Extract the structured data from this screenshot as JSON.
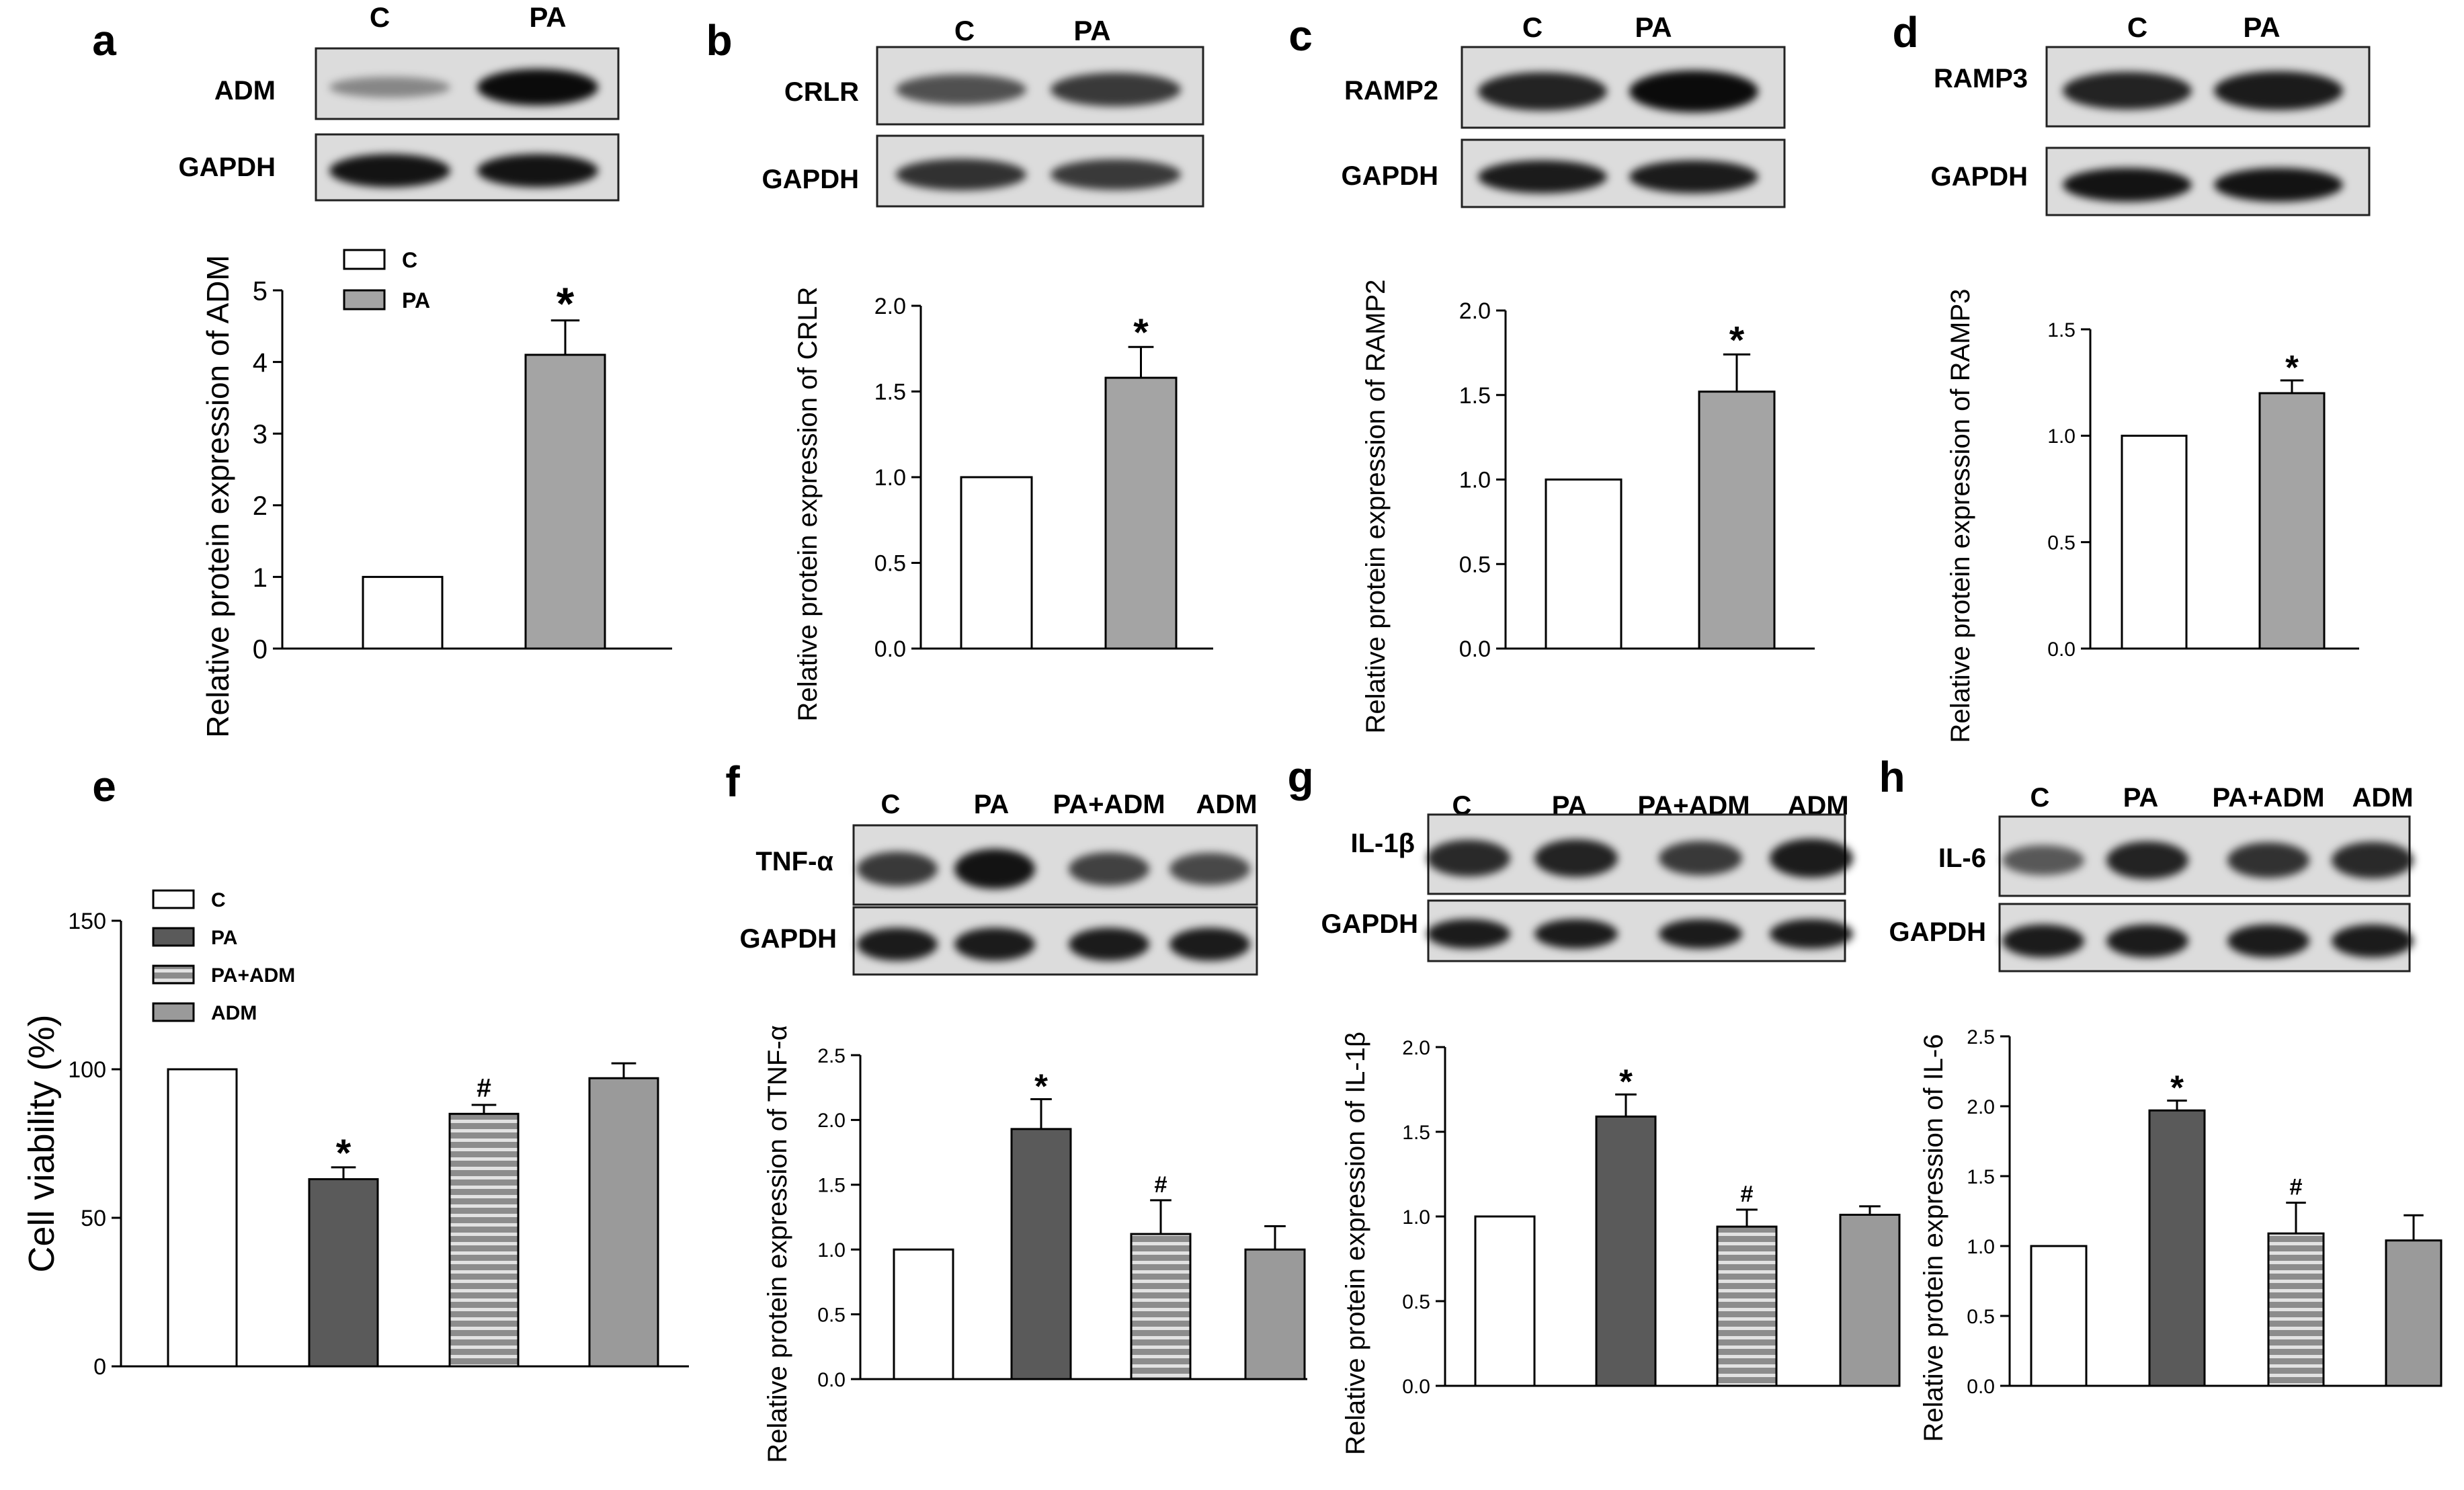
{
  "panels": [
    {
      "letter": "a",
      "protein": "ADM",
      "ylabel": "Relative protein expression of ADM"
    },
    {
      "letter": "b",
      "protein": "CRLR",
      "ylabel": "Relative protein expression of CRLR"
    },
    {
      "letter": "c",
      "protein": "RAMP2",
      "ylabel": "Relative protein expression of RAMP2"
    },
    {
      "letter": "d",
      "protein": "RAMP3",
      "ylabel": "Relative protein expression of RAMP3"
    },
    {
      "letter": "e",
      "protein": "",
      "ylabel": "Cell viability (%)"
    },
    {
      "letter": "f",
      "protein": "TNF-α",
      "ylabel": "Relative protein expression of  TNF-α"
    },
    {
      "letter": "g",
      "protein": "IL-1β",
      "ylabel": "Relative protein expression of IL-1β"
    },
    {
      "letter": "h",
      "protein": "IL-6",
      "ylabel": "Relative protein expression of IL-6"
    }
  ],
  "loading_control": "GAPDH",
  "groups_two": [
    "C",
    "PA"
  ],
  "groups_four": [
    "C",
    "PA",
    "PA+ADM",
    "ADM"
  ],
  "legend_two": [
    "C",
    "PA"
  ],
  "legend_four": [
    "C",
    "PA",
    "PA+ADM",
    "ADM"
  ],
  "colors": {
    "C": "#ffffff",
    "PA_two": "#a4a4a4",
    "PA_four": "#5a5a5a",
    "PA_ADM": "#8c8c8c",
    "ADM": "#9a9a9a"
  },
  "chart_data": [
    {
      "panel": "a",
      "type": "bar",
      "categories": [
        "C",
        "PA"
      ],
      "values": [
        1.0,
        4.1
      ],
      "errors": [
        0,
        0.48
      ],
      "marks": [
        "",
        "*"
      ],
      "ylim": [
        0,
        5
      ],
      "yticks": [
        "0",
        "1",
        "2",
        "3",
        "4",
        "5"
      ],
      "ylabel": "Relative protein expression of ADM",
      "legend": "top-left"
    },
    {
      "panel": "b",
      "type": "bar",
      "categories": [
        "C",
        "PA"
      ],
      "values": [
        1.0,
        1.58
      ],
      "errors": [
        0,
        0.18
      ],
      "marks": [
        "",
        "*"
      ],
      "ylim": [
        0,
        2.0
      ],
      "yticks": [
        "0.0",
        "0.5",
        "1.0",
        "1.5",
        "2.0"
      ],
      "ylabel": "Relative protein expression of CRLR"
    },
    {
      "panel": "c",
      "type": "bar",
      "categories": [
        "C",
        "PA"
      ],
      "values": [
        1.0,
        1.52
      ],
      "errors": [
        0,
        0.22
      ],
      "marks": [
        "",
        "*"
      ],
      "ylim": [
        0,
        2.0
      ],
      "yticks": [
        "0.0",
        "0.5",
        "1.0",
        "1.5",
        "2.0"
      ],
      "ylabel": "Relative protein expression of RAMP2"
    },
    {
      "panel": "d",
      "type": "bar",
      "categories": [
        "C",
        "PA"
      ],
      "values": [
        1.0,
        1.2
      ],
      "errors": [
        0,
        0.06
      ],
      "marks": [
        "",
        "*"
      ],
      "ylim": [
        0,
        1.5
      ],
      "yticks": [
        "0.0",
        "0.5",
        "1.0",
        "1.5"
      ],
      "ylabel": "Relative protein expression of RAMP3"
    },
    {
      "panel": "e",
      "type": "bar",
      "categories": [
        "C",
        "PA",
        "PA+ADM",
        "ADM"
      ],
      "values": [
        100,
        63,
        85,
        97
      ],
      "errors": [
        0,
        4,
        3,
        5
      ],
      "marks": [
        "",
        "*",
        "#",
        ""
      ],
      "ylim": [
        0,
        150
      ],
      "yticks": [
        "0",
        "50",
        "100",
        "150"
      ],
      "ylabel": "Cell viability (%)",
      "legend": "top-left"
    },
    {
      "panel": "f",
      "type": "bar",
      "categories": [
        "C",
        "PA",
        "PA+ADM",
        "ADM"
      ],
      "values": [
        1.0,
        1.93,
        1.12,
        1.0
      ],
      "errors": [
        0,
        0.23,
        0.26,
        0.18
      ],
      "marks": [
        "",
        "*",
        "#",
        ""
      ],
      "ylim": [
        0,
        2.5
      ],
      "yticks": [
        "0.0",
        "0.5",
        "1.0",
        "1.5",
        "2.0",
        "2.5"
      ],
      "ylabel": "Relative protein expression of  TNF-α"
    },
    {
      "panel": "g",
      "type": "bar",
      "categories": [
        "C",
        "PA",
        "PA+ADM",
        "ADM"
      ],
      "values": [
        1.0,
        1.59,
        0.94,
        1.01
      ],
      "errors": [
        0,
        0.13,
        0.1,
        0.05
      ],
      "marks": [
        "",
        "*",
        "#",
        ""
      ],
      "ylim": [
        0,
        2.0
      ],
      "yticks": [
        "0.0",
        "0.5",
        "1.0",
        "1.5",
        "2.0"
      ],
      "ylabel": "Relative protein expression of IL-1β"
    },
    {
      "panel": "h",
      "type": "bar",
      "categories": [
        "C",
        "PA",
        "PA+ADM",
        "ADM"
      ],
      "values": [
        1.0,
        1.97,
        1.09,
        1.04
      ],
      "errors": [
        0,
        0.07,
        0.22,
        0.18
      ],
      "marks": [
        "",
        "*",
        "#",
        ""
      ],
      "ylim": [
        0,
        2.5
      ],
      "yticks": [
        "0.0",
        "0.5",
        "1.0",
        "1.5",
        "2.0",
        "2.5"
      ],
      "ylabel": "Relative protein expression of IL-6"
    }
  ]
}
